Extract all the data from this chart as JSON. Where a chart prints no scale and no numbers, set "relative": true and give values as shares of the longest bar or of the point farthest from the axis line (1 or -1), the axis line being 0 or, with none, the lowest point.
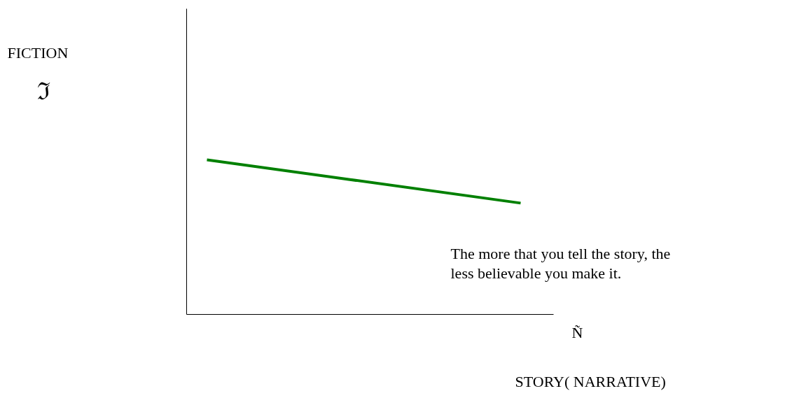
{
  "chart_data": {
    "type": "line",
    "relative": true,
    "categories": [
      null,
      null
    ],
    "series": [
      {
        "color": "#008000",
        "values": [
          1,
          0.72
        ]
      }
    ],
    "xlabel": "STORY( NARRATIVE)",
    "annotations": [
      "FICTION",
      "ℑ",
      "Ñ",
      "The more that you tell the story, the\nless believable you make it."
    ]
  }
}
